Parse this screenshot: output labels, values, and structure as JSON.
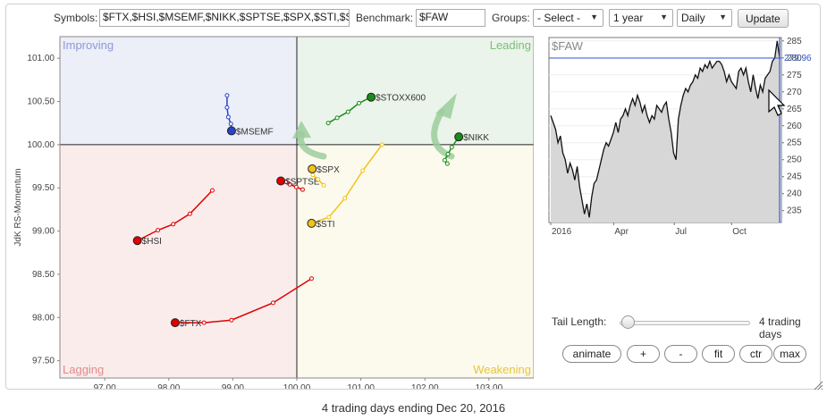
{
  "toolbar": {
    "symbols_label": "Symbols:",
    "symbols_value": "$FTX,$HSI,$MSEMF,$NIKK,$SPTSE,$SPX,$STI,$S",
    "benchmark_label": "Benchmark:",
    "benchmark_value": "$FAW",
    "groups_label": "Groups:",
    "groups_selected": "- Select -",
    "period_selected": "1 year",
    "frequency_selected": "Daily",
    "update_label": "Update"
  },
  "rrg": {
    "xlabel": "JdK RS-Ratio",
    "ylabel": "JdK RS-Momentum",
    "x_ticks": [
      "97.00",
      "98.00",
      "99.00",
      "100.00",
      "101.00",
      "102.00",
      "103.00"
    ],
    "y_ticks": [
      "101.00",
      "100.50",
      "100.00",
      "99.50",
      "99.00",
      "98.50",
      "98.00",
      "97.50"
    ],
    "quadrants": {
      "improving": "Improving",
      "leading": "Leading",
      "lagging": "Lagging",
      "weakening": "Weakening"
    },
    "quadrant_colors": {
      "improving": "#eceef8",
      "leading": "#eaf4ea",
      "lagging": "#fbecec",
      "weakening": "#fbfaec",
      "improving_text": "#8e9ad6",
      "leading_text": "#7cbd7c",
      "lagging_text": "#e08a8a",
      "weakening_text": "#e8c440"
    }
  },
  "chart_data": [
    {
      "type": "scatter",
      "xlabel": "JdK RS-Ratio",
      "ylabel": "JdK RS-Momentum",
      "xlim": [
        96.3,
        103.7
      ],
      "ylim": [
        97.3,
        101.25
      ],
      "series": [
        {
          "name": "$FTX",
          "color": "#e00000",
          "tail": [
            [
              100.23,
              98.45
            ],
            [
              99.63,
              98.17
            ],
            [
              98.98,
              97.97
            ],
            [
              98.55,
              97.94
            ],
            [
              98.1,
              97.94
            ]
          ]
        },
        {
          "name": "$HSI",
          "color": "#e00000",
          "tail": [
            [
              98.68,
              99.47
            ],
            [
              98.33,
              99.2
            ],
            [
              98.07,
              99.08
            ],
            [
              97.83,
              99.01
            ],
            [
              97.51,
              98.89
            ]
          ]
        },
        {
          "name": "$MSEMF",
          "color": "#2a44c8",
          "tail": [
            [
              98.91,
              100.57
            ],
            [
              98.91,
              100.43
            ],
            [
              98.93,
              100.32
            ],
            [
              98.97,
              100.24
            ],
            [
              98.98,
              100.16
            ]
          ]
        },
        {
          "name": "$SPTSE",
          "color": "#e00000",
          "tail": [
            [
              100.09,
              99.48
            ],
            [
              99.99,
              99.51
            ],
            [
              99.89,
              99.54
            ],
            [
              99.83,
              99.57
            ],
            [
              99.75,
              99.58
            ]
          ]
        },
        {
          "name": "$SPX",
          "color": "#f2c21c",
          "tail": [
            [
              100.42,
              99.53
            ],
            [
              100.33,
              99.6
            ],
            [
              100.25,
              99.65
            ],
            [
              100.24,
              99.72
            ]
          ]
        },
        {
          "name": "$STI",
          "color": "#f2c21c",
          "tail": [
            [
              101.33,
              100.0
            ],
            [
              101.03,
              99.7
            ],
            [
              100.75,
              99.38
            ],
            [
              100.5,
              99.16
            ],
            [
              100.23,
              99.09
            ]
          ]
        },
        {
          "name": "$STOXX600",
          "color": "#1a8a1a",
          "tail": [
            [
              100.49,
              100.25
            ],
            [
              100.63,
              100.31
            ],
            [
              100.8,
              100.38
            ],
            [
              100.97,
              100.48
            ],
            [
              101.16,
              100.55
            ]
          ]
        },
        {
          "name": "$NIKK",
          "color": "#1a8a1a",
          "tail": [
            [
              102.35,
              99.78
            ],
            [
              102.31,
              99.82
            ],
            [
              102.36,
              99.89
            ],
            [
              102.42,
              99.97
            ],
            [
              102.53,
              100.09
            ]
          ]
        }
      ]
    },
    {
      "type": "line",
      "title": "$FAW",
      "x_ticks": [
        "2016",
        "Apr",
        "Jul",
        "Oct"
      ],
      "y_ticks": [
        "285",
        "280",
        "275",
        "270",
        "265",
        "260",
        "255",
        "250",
        "245",
        "240",
        "235"
      ],
      "ylim": [
        231.5,
        286
      ],
      "last_value": "279.96",
      "series": [
        {
          "name": "$FAW",
          "values": [
            263,
            261,
            259,
            255,
            257,
            252,
            250,
            246,
            249,
            247,
            244,
            248,
            242,
            238,
            234,
            237,
            233,
            239,
            243,
            244,
            247,
            250,
            253,
            255,
            254,
            256,
            258,
            261,
            258,
            262,
            263,
            265,
            263,
            266,
            268,
            266,
            269,
            267,
            264,
            266,
            263,
            261,
            263,
            262,
            266,
            265,
            264,
            266,
            267,
            262,
            258,
            252,
            250,
            262,
            266,
            269,
            271,
            270,
            272,
            273,
            275,
            274,
            277,
            276,
            278,
            277,
            279,
            277,
            278,
            279,
            279,
            278,
            276,
            273,
            275,
            273,
            272,
            271,
            276,
            277,
            275,
            277,
            273,
            270,
            275,
            271,
            268,
            272,
            270,
            274,
            275,
            276,
            279,
            280,
            285,
            280
          ]
        }
      ]
    }
  ],
  "controls": {
    "tail_length_label": "Tail Length:",
    "tail_length_value": "4 trading days",
    "tail_length_days": 4,
    "tail_length_max_days": 65,
    "buttons": [
      "animate",
      "+",
      "-",
      "fit",
      "ctr",
      "max"
    ]
  },
  "footer": {
    "status_text": "4 trading days ending Dec 20, 2016"
  }
}
